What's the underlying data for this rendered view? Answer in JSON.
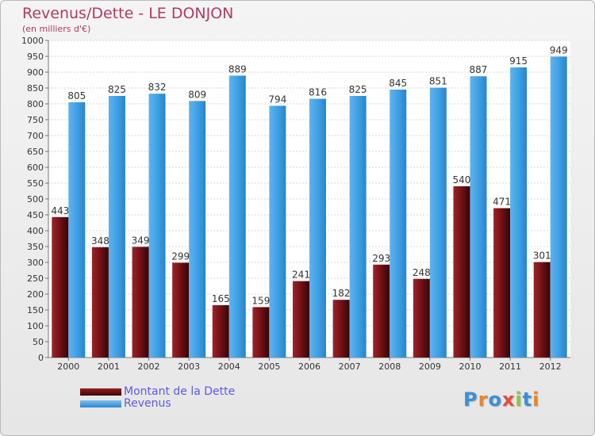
{
  "chart_data": {
    "type": "bar",
    "title": "Revenus/Dette - LE DONJON",
    "subtitle": "(en milliers d'€)",
    "categories": [
      "2000",
      "2001",
      "2002",
      "2003",
      "2004",
      "2005",
      "2006",
      "2007",
      "2008",
      "2009",
      "2010",
      "2011",
      "2012"
    ],
    "series": [
      {
        "name": "Montant de la Dette",
        "color": "#6b0f13",
        "values": [
          443,
          348,
          349,
          299,
          165,
          159,
          241,
          182,
          293,
          248,
          540,
          471,
          301
        ]
      },
      {
        "name": "Revenus",
        "color": "#3d9ee3",
        "values": [
          805,
          825,
          832,
          809,
          889,
          794,
          816,
          825,
          845,
          851,
          887,
          915,
          949
        ]
      }
    ],
    "ylim": [
      0,
      1000
    ],
    "ytick_step": 50,
    "grid": true,
    "legend": "bottom-left"
  },
  "logo_letters": [
    {
      "ch": "P",
      "color": "#3b8fd8"
    },
    {
      "ch": "r",
      "color": "#e8862a"
    },
    {
      "ch": "o",
      "color": "#3b8fd8"
    },
    {
      "ch": "x",
      "color": "#e84b3c"
    },
    {
      "ch": "i",
      "color": "#8cc63f"
    },
    {
      "ch": "t",
      "color": "#3b8fd8"
    },
    {
      "ch": "i",
      "color": "#e8862a"
    }
  ]
}
